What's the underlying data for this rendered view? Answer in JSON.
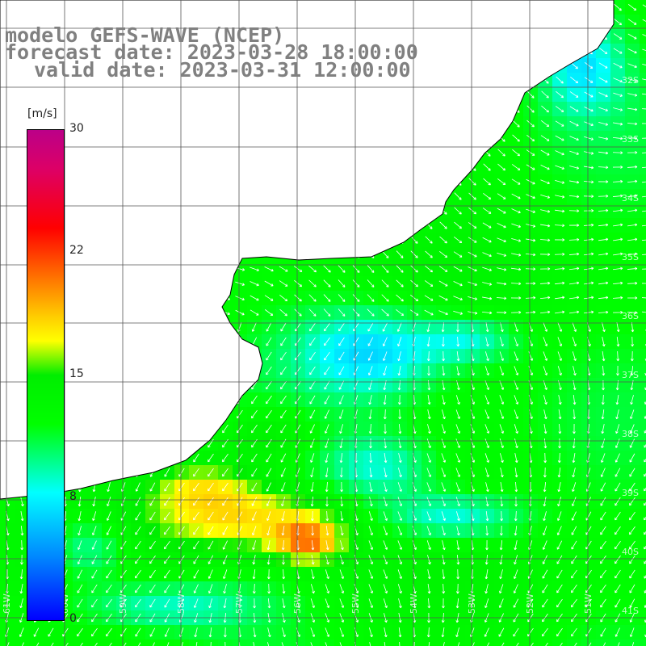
{
  "title": {
    "line1": "modelo GEFS-WAVE (NCEP)",
    "line2": "forecast date: 2023-03-28 18:00:00",
    "line3": "valid date: 2023-03-31 12:00:00"
  },
  "colorbar": {
    "unit": "[m/s]",
    "tick_labels": [
      "30",
      "22",
      "15",
      "8",
      "0"
    ],
    "range": [
      0,
      30
    ],
    "colors": {
      "min": "#0000ff",
      "low": "#00ffff",
      "mid": "#00ff00",
      "high": "#ffff00",
      "higher": "#ff0000",
      "max": "#bb0088"
    }
  },
  "map": {
    "field": "wind speed with direction arrows",
    "land_color": "#ffffff",
    "grid": true,
    "lat_labels": [
      "32S",
      "33S",
      "34S",
      "35S",
      "36S",
      "37S",
      "38S",
      "39S",
      "40S",
      "41S"
    ],
    "lon_labels": [
      "61W",
      "60W",
      "59W",
      "58W",
      "57W",
      "56W",
      "55W",
      "54W",
      "53W",
      "52W",
      "51W"
    ]
  }
}
